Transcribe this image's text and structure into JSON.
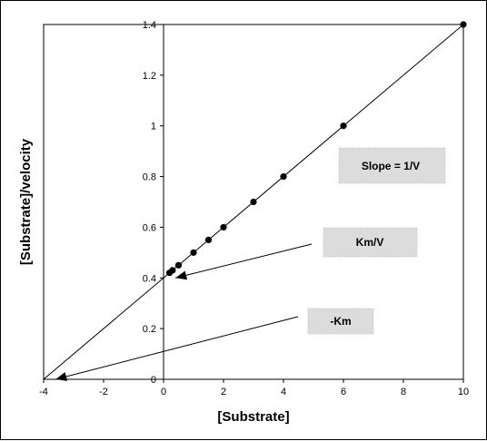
{
  "chart_data": {
    "type": "scatter",
    "xlabel": "[Substrate]",
    "ylabel": "[Substrate]/velocity",
    "xlim": [
      -4,
      10
    ],
    "ylim": [
      0,
      1.4
    ],
    "x_ticks": [
      -4,
      -2,
      0,
      2,
      4,
      6,
      8,
      10
    ],
    "y_ticks": [
      0,
      0.2,
      0.4,
      0.6,
      0.8,
      1,
      1.2,
      1.4
    ],
    "x": [
      0.2,
      0.3,
      0.5,
      1,
      1.5,
      2,
      3,
      4,
      6,
      10
    ],
    "y": [
      0.42,
      0.43,
      0.45,
      0.5,
      0.55,
      0.6,
      0.7,
      0.8,
      1.0,
      1.4
    ],
    "fit_line": {
      "x": [
        -4,
        10
      ],
      "y": [
        0,
        1.4
      ]
    },
    "annotations": [
      {
        "text": "Slope = 1/V"
      },
      {
        "text": "Km/V",
        "arrow_to": [
          0.4,
          0.4
        ]
      },
      {
        "text": "-Km",
        "arrow_to": [
          -3.6,
          0
        ]
      }
    ],
    "grid": false
  }
}
